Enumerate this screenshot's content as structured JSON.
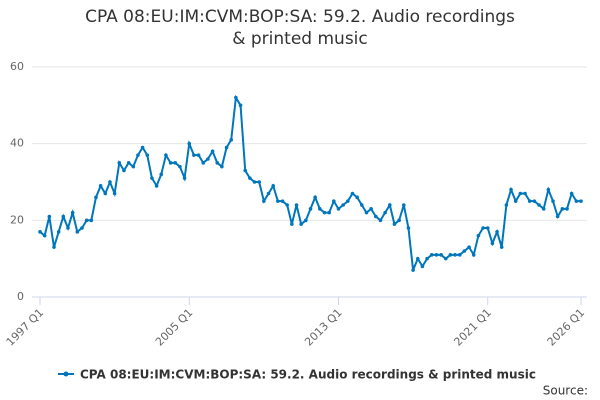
{
  "chart_data": {
    "type": "line",
    "title": "CPA 08:EU:IM:CVM:BOP:SA: 59.2. Audio recordings & printed music",
    "source_label": "Source:",
    "categories": [
      "1997 Q1",
      null,
      null,
      null,
      null,
      null,
      null,
      null,
      null,
      null,
      null,
      null,
      null,
      null,
      null,
      null,
      null,
      null,
      null,
      null,
      null,
      null,
      null,
      null,
      null,
      null,
      null,
      null,
      null,
      null,
      null,
      null,
      "2005 Q1",
      null,
      null,
      null,
      null,
      null,
      null,
      null,
      null,
      null,
      null,
      null,
      null,
      null,
      null,
      null,
      null,
      null,
      null,
      null,
      null,
      null,
      null,
      null,
      null,
      null,
      null,
      null,
      null,
      null,
      null,
      null,
      "2013 Q1",
      null,
      null,
      null,
      null,
      null,
      null,
      null,
      null,
      null,
      null,
      null,
      null,
      null,
      null,
      null,
      null,
      null,
      null,
      null,
      null,
      null,
      null,
      null,
      null,
      null,
      null,
      null,
      null,
      null,
      null,
      null,
      "2021 Q1",
      null,
      null,
      null,
      null,
      null,
      null,
      null,
      null,
      null,
      null,
      null,
      null,
      null,
      null,
      null,
      null,
      null,
      null,
      null,
      "2026 Q1"
    ],
    "series": [
      {
        "name": "CPA 08:EU:IM:CVM:BOP:SA: 59.2. Audio recordings & printed music",
        "color": "#0077bc",
        "values": [
          17,
          16,
          21,
          13,
          17,
          21,
          18,
          22,
          17,
          18,
          20,
          20,
          26,
          29,
          27,
          30,
          27,
          35,
          33,
          35,
          34,
          37,
          39,
          37,
          31,
          29,
          32,
          37,
          35,
          35,
          34,
          31,
          40,
          37,
          37,
          35,
          36,
          38,
          35,
          34,
          39,
          41,
          52,
          50,
          33,
          31,
          30,
          30,
          25,
          27,
          29,
          25,
          25,
          24,
          19,
          24,
          19,
          20,
          23,
          26,
          23,
          22,
          22,
          25,
          23,
          24,
          25,
          27,
          26,
          24,
          22,
          23,
          21,
          20,
          22,
          24,
          19,
          20,
          24,
          18,
          7,
          10,
          8,
          10,
          11,
          11,
          11,
          10,
          11,
          11,
          11,
          12,
          13,
          11,
          16,
          18,
          18,
          14,
          17,
          13,
          24,
          28,
          25,
          27,
          27,
          25,
          25,
          24,
          23,
          28,
          25,
          21,
          23,
          23,
          27,
          25,
          25
        ]
      }
    ],
    "ylim": [
      0,
      60
    ],
    "yticks": [
      0,
      20,
      40,
      60
    ],
    "grid": true
  }
}
